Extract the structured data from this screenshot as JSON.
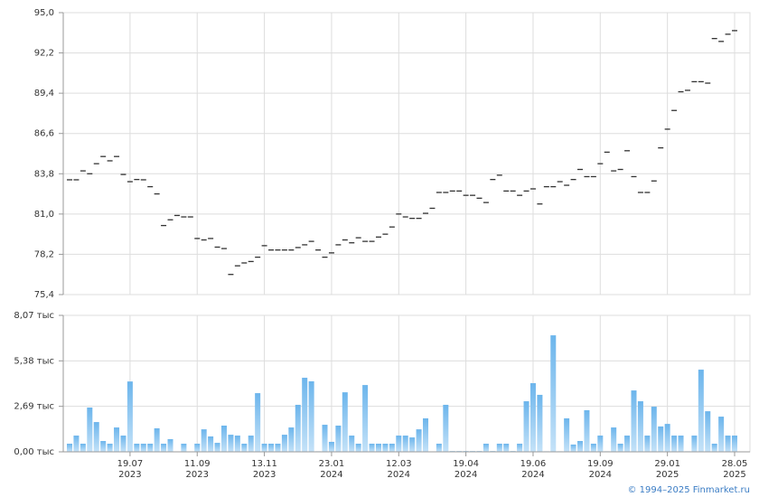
{
  "chart_data": [
    {
      "type": "dash",
      "values": [
        83.38,
        83.38,
        84.0,
        83.8,
        84.5,
        85.0,
        84.7,
        85.0,
        83.75,
        83.25,
        83.4,
        83.38,
        82.9,
        82.4,
        80.2,
        80.6,
        80.9,
        80.8,
        80.8,
        79.3,
        79.2,
        79.3,
        78.7,
        78.6,
        76.8,
        77.4,
        77.6,
        77.7,
        78.0,
        78.8,
        78.5,
        78.5,
        78.5,
        78.5,
        78.67,
        78.86,
        79.1,
        78.5,
        78.0,
        78.3,
        78.86,
        79.2,
        79.0,
        79.35,
        79.1,
        79.1,
        79.4,
        79.6,
        80.1,
        81.0,
        80.8,
        80.7,
        80.7,
        81.05,
        81.4,
        82.5,
        82.5,
        82.6,
        82.6,
        82.3,
        82.3,
        82.1,
        81.8,
        83.4,
        83.7,
        82.6,
        82.6,
        82.3,
        82.6,
        82.75,
        81.7,
        82.9,
        82.9,
        83.25,
        83.0,
        83.4,
        84.1,
        83.6,
        83.6,
        84.5,
        85.3,
        84.0,
        84.1,
        85.4,
        83.6,
        82.5,
        82.5,
        83.3,
        85.6,
        86.9,
        88.2,
        89.5,
        89.6,
        90.2,
        90.2,
        90.1,
        93.2,
        93.0,
        93.5,
        93.75
      ],
      "color": "#333333",
      "ylim": [
        75.4,
        95.0
      ],
      "yticks": [
        {
          "value": 75.4,
          "label": "75,4"
        },
        {
          "value": 78.2,
          "label": "78,2"
        },
        {
          "value": 81.0,
          "label": "81,0"
        },
        {
          "value": 83.8,
          "label": "83,8"
        },
        {
          "value": 86.6,
          "label": "86,6"
        },
        {
          "value": 89.4,
          "label": "89,4"
        },
        {
          "value": 92.2,
          "label": "92,2"
        },
        {
          "value": 95.0,
          "label": "95,0"
        }
      ],
      "grid": true
    },
    {
      "type": "bar",
      "categories": [
        null,
        null,
        null,
        null,
        null,
        null,
        null,
        null,
        null,
        "19.07 2023",
        null,
        null,
        null,
        null,
        null,
        null,
        null,
        null,
        null,
        "11.09 2023",
        null,
        null,
        null,
        null,
        null,
        null,
        null,
        null,
        null,
        "13.11 2023",
        null,
        null,
        null,
        null,
        null,
        null,
        null,
        null,
        null,
        "23.01 2024",
        null,
        null,
        null,
        null,
        null,
        null,
        null,
        null,
        null,
        "12.03 2024",
        null,
        null,
        null,
        null,
        null,
        null,
        null,
        null,
        null,
        "19.04 2024",
        null,
        null,
        null,
        null,
        null,
        null,
        null,
        null,
        null,
        "19.06 2024",
        null,
        null,
        null,
        null,
        null,
        null,
        null,
        null,
        null,
        "19.09 2024",
        null,
        null,
        null,
        null,
        null,
        null,
        null,
        null,
        null,
        "29.01 2025",
        null,
        null,
        null,
        null,
        null,
        null,
        null,
        null,
        null,
        "28.05 2025"
      ],
      "values": [
        480,
        960,
        480,
        2620,
        1760,
        640,
        480,
        1440,
        960,
        4160,
        480,
        480,
        480,
        1390,
        480,
        750,
        0,
        480,
        0,
        480,
        1330,
        910,
        530,
        1550,
        1010,
        960,
        480,
        960,
        3470,
        480,
        480,
        480,
        1010,
        1440,
        2780,
        4380,
        4170,
        30,
        1600,
        590,
        1550,
        3520,
        960,
        480,
        3950,
        480,
        480,
        480,
        480,
        960,
        960,
        850,
        1330,
        1980,
        0,
        480,
        2780,
        40,
        40,
        40,
        40,
        40,
        480,
        40,
        480,
        480,
        40,
        480,
        2990,
        4060,
        3370,
        30,
        6890,
        30,
        1980,
        430,
        640,
        2460,
        480,
        960,
        30,
        1440,
        480,
        960,
        3630,
        2990,
        960,
        2670,
        1500,
        1650,
        960,
        960,
        30,
        960,
        4860,
        2400,
        480,
        2080,
        960,
        960
      ],
      "color": "#7dbfee",
      "ylim": [
        0,
        8070
      ],
      "yticks": [
        {
          "value": 0,
          "label": "0,00 тыс"
        },
        {
          "value": 2690,
          "label": "2,69 тыс"
        },
        {
          "value": 5380,
          "label": "5,38 тыс"
        },
        {
          "value": 8070,
          "label": "8,07 тыс"
        }
      ],
      "grid": true
    }
  ],
  "footer": "© 1994–2025 Finmarket.ru"
}
